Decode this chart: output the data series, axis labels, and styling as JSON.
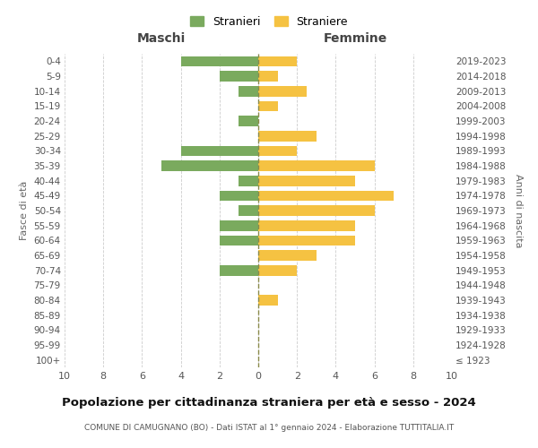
{
  "age_groups": [
    "100+",
    "95-99",
    "90-94",
    "85-89",
    "80-84",
    "75-79",
    "70-74",
    "65-69",
    "60-64",
    "55-59",
    "50-54",
    "45-49",
    "40-44",
    "35-39",
    "30-34",
    "25-29",
    "20-24",
    "15-19",
    "10-14",
    "5-9",
    "0-4"
  ],
  "birth_years": [
    "≤ 1923",
    "1924-1928",
    "1929-1933",
    "1934-1938",
    "1939-1943",
    "1944-1948",
    "1949-1953",
    "1954-1958",
    "1959-1963",
    "1964-1968",
    "1969-1973",
    "1974-1978",
    "1979-1983",
    "1984-1988",
    "1989-1993",
    "1994-1998",
    "1999-2003",
    "2004-2008",
    "2009-2013",
    "2014-2018",
    "2019-2023"
  ],
  "maschi": [
    0,
    0,
    0,
    0,
    0,
    0,
    2,
    0,
    2,
    2,
    1,
    2,
    1,
    5,
    4,
    0,
    1,
    0,
    1,
    2,
    4
  ],
  "femmine": [
    0,
    0,
    0,
    0,
    1,
    0,
    2,
    3,
    5,
    5,
    6,
    7,
    5,
    6,
    2,
    3,
    0,
    1,
    2.5,
    1,
    2
  ],
  "color_maschi": "#7aaa5e",
  "color_femmine": "#f5c242",
  "title": "Popolazione per cittadinanza straniera per età e sesso - 2024",
  "subtitle": "COMUNE DI CAMUGNANO (BO) - Dati ISTAT al 1° gennaio 2024 - Elaborazione TUTTITALIA.IT",
  "xlabel_left": "Maschi",
  "xlabel_right": "Femmine",
  "ylabel_left": "Fasce di età",
  "ylabel_right": "Anni di nascita",
  "legend_maschi": "Stranieri",
  "legend_femmine": "Straniere",
  "xlim": 10,
  "background_color": "#ffffff",
  "grid_color": "#cccccc",
  "dashed_line_color": "#8a8a4a"
}
